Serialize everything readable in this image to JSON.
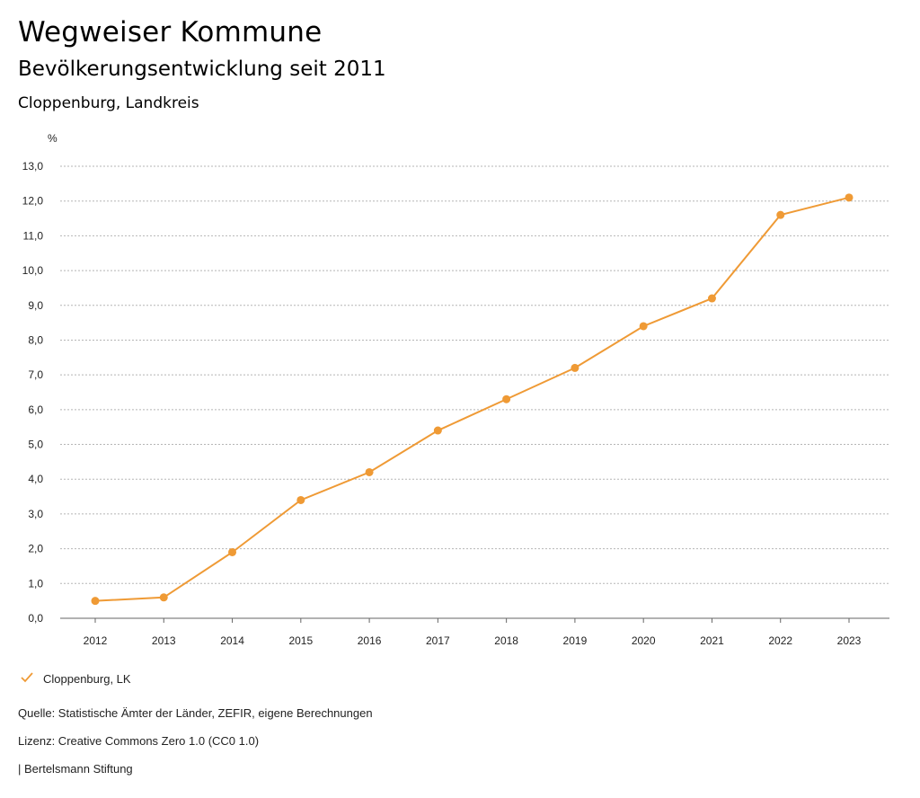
{
  "header": {
    "title": "Wegweiser Kommune",
    "subtitle": "Bevölkerungsentwicklung seit 2011",
    "region": "Cloppenburg, Landkreis"
  },
  "chart_data": {
    "type": "line",
    "title": "Bevölkerungsentwicklung seit 2011",
    "xlabel": "",
    "ylabel": "%",
    "x": [
      "2012",
      "2013",
      "2014",
      "2015",
      "2016",
      "2017",
      "2018",
      "2019",
      "2020",
      "2021",
      "2022",
      "2023"
    ],
    "series": [
      {
        "name": "Cloppenburg, LK",
        "color": "#ef9a35",
        "values": [
          0.5,
          0.6,
          1.9,
          3.4,
          4.2,
          5.4,
          6.3,
          7.2,
          8.4,
          9.2,
          11.6,
          12.1
        ]
      }
    ],
    "yticks": [
      "0,0",
      "1,0",
      "2,0",
      "3,0",
      "4,0",
      "5,0",
      "6,0",
      "7,0",
      "8,0",
      "9,0",
      "10,0",
      "11,0",
      "12,0",
      "13,0"
    ],
    "ylim": [
      0,
      13
    ],
    "grid": true,
    "legend": "bottom-left"
  },
  "legend": {
    "label": "Cloppenburg, LK",
    "check": "✓"
  },
  "footer": {
    "source": "Quelle: Statistische Ämter der Länder, ZEFIR, eigene Berechnungen",
    "license": "Lizenz: Creative Commons Zero 1.0 (CC0 1.0)",
    "publisher": "| Bertelsmann Stiftung"
  }
}
